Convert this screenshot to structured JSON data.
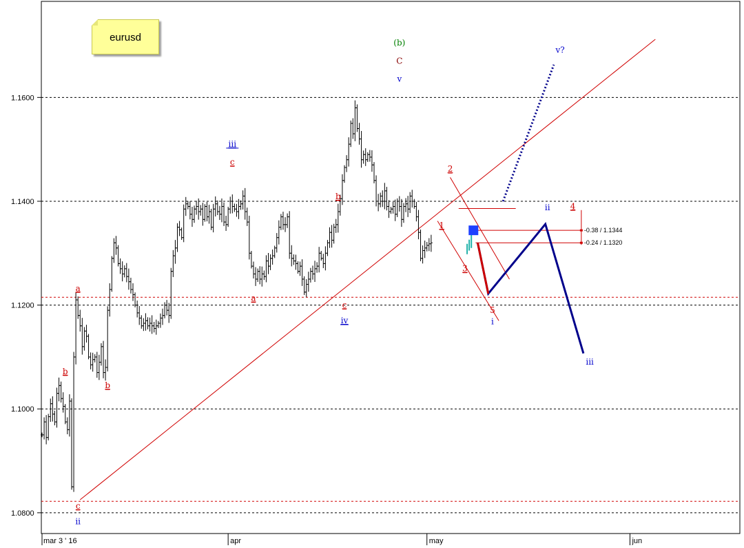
{
  "note": {
    "text": "eurusd"
  },
  "colors": {
    "grid": "#000000",
    "redline": "#d00000",
    "wave_red": "#cc0000",
    "wave_blue": "#0000cc",
    "wave_dark": "#880000",
    "wave_green": "#008000",
    "proj_blue": "#00008b",
    "box_blue": "#1e40ff",
    "cyan": "#20b2aa"
  },
  "chart_data": {
    "type": "ohlc",
    "title": "",
    "ylim": [
      1.076,
      1.1785
    ],
    "yticks": [
      1.08,
      1.1,
      1.12,
      1.14,
      1.16
    ],
    "ytick_labels": [
      "1.0800",
      "1.1000",
      "1.1200",
      "1.1400",
      "1.1600"
    ],
    "xticks": [
      {
        "label": "mar 3 ' 16",
        "bar": 0
      },
      {
        "label": "apr",
        "bar": 88
      },
      {
        "label": "may",
        "bar": 182
      },
      {
        "label": "jun",
        "bar": 278
      }
    ],
    "horizontal_levels": [
      {
        "price": 1.1215,
        "style": "dashed",
        "color": "red"
      },
      {
        "price": 1.0822,
        "style": "dashed",
        "color": "red"
      }
    ],
    "closes": [
      1.095,
      1.0975,
      1.0945,
      1.0985,
      1.101,
      1.099,
      1.0975,
      1.103,
      1.1045,
      1.102,
      1.1005,
      1.0975,
      1.096,
      1.1015,
      1.085,
      1.11,
      1.121,
      1.118,
      1.116,
      1.112,
      1.115,
      1.114,
      1.11,
      1.1085,
      1.1095,
      1.11,
      1.107,
      1.109,
      1.112,
      1.107,
      1.108,
      1.119,
      1.123,
      1.129,
      1.132,
      1.131,
      1.128,
      1.127,
      1.126,
      1.127,
      1.1255,
      1.1245,
      1.123,
      1.122,
      1.12,
      1.1185,
      1.1175,
      1.116,
      1.1165,
      1.117,
      1.116,
      1.1165,
      1.116,
      1.1155,
      1.116,
      1.1165,
      1.1175,
      1.118,
      1.12,
      1.119,
      1.118,
      1.1265,
      1.1295,
      1.131,
      1.135,
      1.1345,
      1.133,
      1.1385,
      1.1395,
      1.139,
      1.1375,
      1.1365,
      1.1385,
      1.139,
      1.138,
      1.1385,
      1.1365,
      1.139,
      1.137,
      1.138,
      1.135,
      1.1385,
      1.1395,
      1.138,
      1.1375,
      1.139,
      1.136,
      1.1355,
      1.1385,
      1.14,
      1.139,
      1.1385,
      1.138,
      1.139,
      1.1395,
      1.141,
      1.138,
      1.136,
      1.13,
      1.1275,
      1.126,
      1.125,
      1.1265,
      1.125,
      1.126,
      1.1255,
      1.1285,
      1.1275,
      1.129,
      1.1295,
      1.131,
      1.133,
      1.135,
      1.137,
      1.1355,
      1.1355,
      1.137,
      1.13,
      1.129,
      1.1285,
      1.128,
      1.1265,
      1.1275,
      1.125,
      1.1225,
      1.124,
      1.125,
      1.1265,
      1.126,
      1.127,
      1.1275,
      1.13,
      1.129,
      1.128,
      1.13,
      1.132,
      1.134,
      1.1325,
      1.135,
      1.1355,
      1.138,
      1.1405,
      1.144,
      1.1465,
      1.148,
      1.151,
      1.155,
      1.153,
      1.158,
      1.154,
      1.152,
      1.148,
      1.149,
      1.148,
      1.149,
      1.1485,
      1.147,
      1.144,
      1.14,
      1.1395,
      1.141,
      1.14,
      1.142,
      1.139,
      1.138,
      1.1385,
      1.139,
      1.1375,
      1.14,
      1.139,
      1.1365,
      1.139,
      1.1395,
      1.1385,
      1.141,
      1.14,
      1.139,
      1.137,
      1.134,
      1.129,
      1.1305,
      1.131,
      1.1315,
      1.1318,
      1.132
    ],
    "wave_labels": [
      {
        "text": "a",
        "bar": 17,
        "price": 1.1227,
        "color": "red",
        "underline": true
      },
      {
        "text": "c",
        "bar": 17,
        "price": 1.0808,
        "color": "red",
        "underline": true
      },
      {
        "text": "ii",
        "bar": 17,
        "price": 1.0778,
        "color": "blue",
        "underline": false
      },
      {
        "text": "b",
        "bar": 11,
        "price": 1.1067,
        "color": "red",
        "underline": true
      },
      {
        "text": "b",
        "bar": 31,
        "price": 1.104,
        "color": "red",
        "underline": true
      },
      {
        "text": "iii",
        "bar": 90,
        "price": 1.1505,
        "color": "blue",
        "underline": true
      },
      {
        "text": "c",
        "bar": 90,
        "price": 1.147,
        "color": "red",
        "underline": true
      },
      {
        "text": "a",
        "bar": 100,
        "price": 1.1208,
        "color": "red",
        "underline": true
      },
      {
        "text": "b",
        "bar": 140,
        "price": 1.1404,
        "color": "red",
        "underline": true
      },
      {
        "text": "c",
        "bar": 143,
        "price": 1.1195,
        "color": "red",
        "underline": true
      },
      {
        "text": "iv",
        "bar": 143,
        "price": 1.1165,
        "color": "blue",
        "underline": true
      },
      {
        "text": "(b)",
        "bar": 169,
        "price": 1.17,
        "color": "green",
        "underline": false
      },
      {
        "text": "C",
        "bar": 169,
        "price": 1.1665,
        "color": "dark",
        "underline": false
      },
      {
        "text": "v",
        "bar": 169,
        "price": 1.163,
        "color": "blue",
        "underline": false
      },
      {
        "text": "2",
        "bar": 193,
        "price": 1.1457,
        "color": "red",
        "underline": true
      },
      {
        "text": "1",
        "bar": 189,
        "price": 1.1348,
        "color": "red",
        "underline": true
      },
      {
        "text": "3",
        "bar": 200,
        "price": 1.1265,
        "color": "red",
        "underline": true
      },
      {
        "text": "4",
        "bar": 251,
        "price": 1.1385,
        "color": "red",
        "underline": true
      },
      {
        "text": "5",
        "bar": 213,
        "price": 1.1185,
        "color": "red",
        "underline": false
      },
      {
        "text": "i",
        "bar": 213,
        "price": 1.1163,
        "color": "blue",
        "underline": false
      },
      {
        "text": "ii",
        "bar": 239,
        "price": 1.1383,
        "color": "blue",
        "underline": false
      },
      {
        "text": "iii",
        "bar": 259,
        "price": 1.1085,
        "color": "blue",
        "underline": false
      },
      {
        "text": "v?",
        "bar": 245,
        "price": 1.1686,
        "color": "blue",
        "underline": false
      }
    ],
    "fib_levels": [
      {
        "label": "-0.38 / 1.1344",
        "price": 1.1344
      },
      {
        "label": "-0.24 / 1.1320",
        "price": 1.132
      }
    ],
    "projection_path": [
      {
        "bar": 206,
        "price": 1.132
      },
      {
        "bar": 211,
        "price": 1.1222
      },
      {
        "bar": 238,
        "price": 1.1356
      },
      {
        "bar": 256,
        "price": 1.1107
      }
    ],
    "projection_dotted": [
      {
        "bar": 218,
        "price": 1.14
      },
      {
        "bar": 242,
        "price": 1.1663
      }
    ],
    "red_line_proj": [
      {
        "bar": 206,
        "price": 1.132
      },
      {
        "bar": 211,
        "price": 1.1222
      }
    ],
    "trendline": [
      {
        "bar": 18,
        "price": 1.0825
      },
      {
        "bar": 290,
        "price": 1.1712
      }
    ],
    "channel_lines": [
      [
        {
          "bar": 193,
          "price": 1.1446
        },
        {
          "bar": 221,
          "price": 1.125
        }
      ],
      [
        {
          "bar": 187,
          "price": 1.1362
        },
        {
          "bar": 216,
          "price": 1.117
        }
      ]
    ],
    "resistance_segment": [
      {
        "bar": 197,
        "price": 1.1386
      },
      {
        "bar": 224,
        "price": 1.1386
      }
    ],
    "highlight_box": {
      "bar": 204,
      "price": 1.1344
    },
    "cyan_bars": [
      {
        "bar": 201,
        "high": 1.1318,
        "low": 1.1298
      },
      {
        "bar": 202,
        "high": 1.1326,
        "low": 1.1305
      },
      {
        "bar": 203,
        "high": 1.1336,
        "low": 1.131
      }
    ]
  }
}
